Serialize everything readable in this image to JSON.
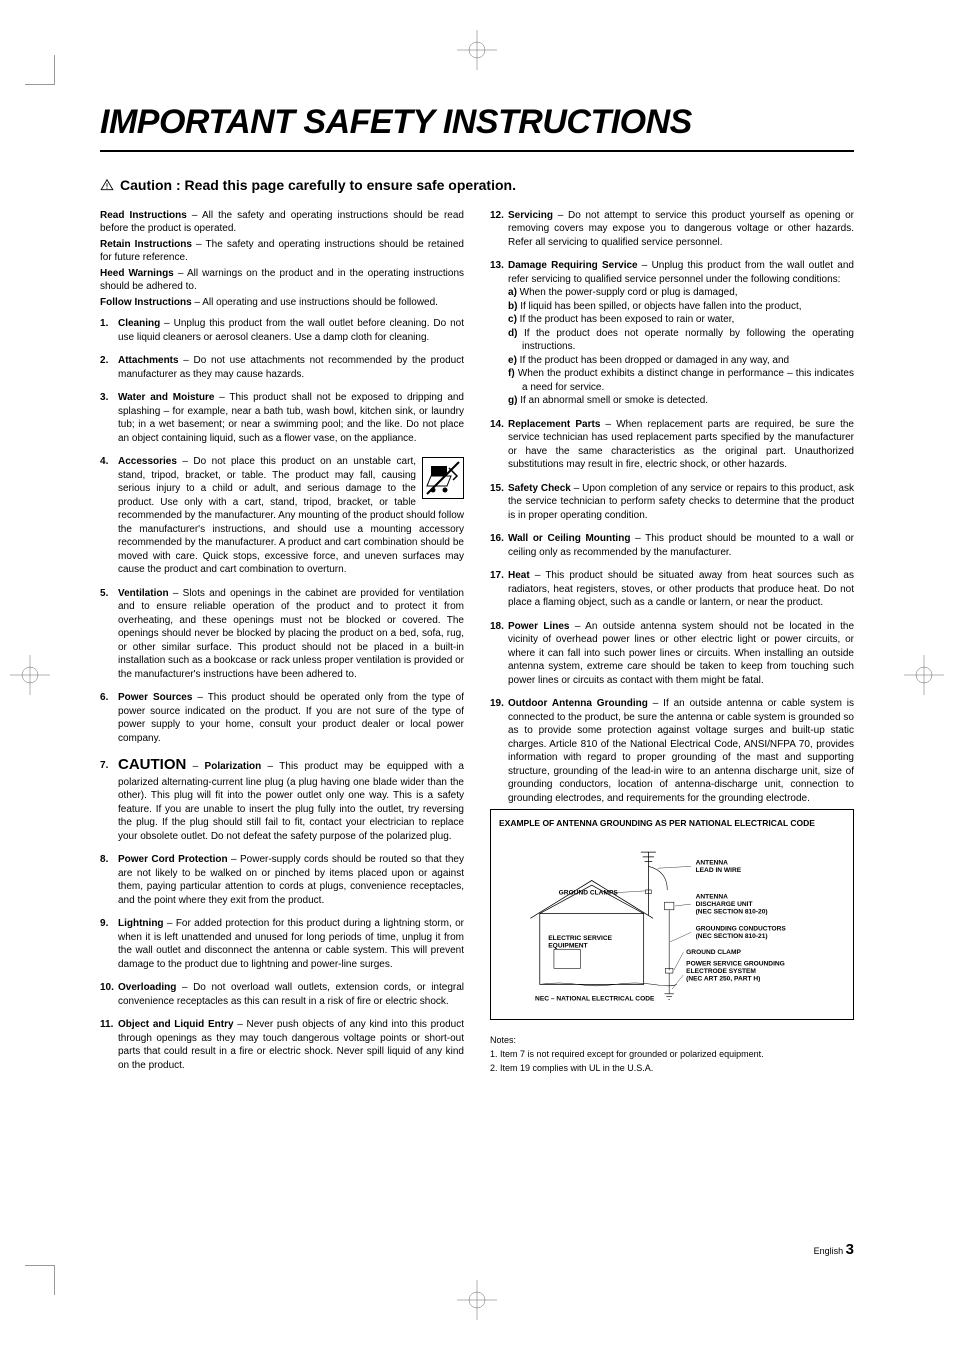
{
  "title": "IMPORTANT SAFETY INSTRUCTIONS",
  "caution_header": "Caution : Read this page carefully to ensure safe operation.",
  "intro": [
    {
      "bold": "Read Instructions",
      "text": " – All the safety and operating instructions should be read before the product is operated."
    },
    {
      "bold": "Retain Instructions",
      "text": " – The safety and operating instructions should be retained for future reference."
    },
    {
      "bold": "Heed Warnings",
      "text": " – All warnings on the product and in the operating instructions should be adhered to."
    },
    {
      "bold": "Follow Instructions",
      "text": " – All operating and use instructions should be followed."
    }
  ],
  "items": [
    {
      "title": "Cleaning",
      "text": " – Unplug this product from the wall outlet before cleaning. Do not use liquid cleaners or aerosol cleaners. Use a damp cloth for cleaning."
    },
    {
      "title": "Attachments",
      "text": " – Do not use attachments not recommended by the product manufacturer as they may cause hazards."
    },
    {
      "title": "Water and Moisture",
      "text": " – This product shall not be exposed to dripping and splashing – for example, near a bath tub, wash bowl, kitchen sink, or laundry tub; in a wet basement; or near a swimming pool; and the like. Do not place an object containing liquid, such as a flower vase, on the appliance."
    },
    {
      "title": "Accessories",
      "text": " – Do not place this product on an unstable cart, stand, tripod, bracket, or table. The product may fall, causing serious injury to a child or adult, and serious damage to the product. Use only with a cart, stand, tripod, bracket, or table recommended by the manufacturer. Any mounting of the product should follow the manufacturer's instructions, and should use a mounting accessory recommended by the manufacturer. A product and cart combination should be moved with care. Quick stops, excessive force, and uneven surfaces may cause the product and cart combination to overturn.",
      "icon": "cart"
    },
    {
      "title": "Ventilation",
      "text": " – Slots and openings in the cabinet are provided for ventilation and to ensure reliable operation of the product and to protect it from overheating, and these openings must not be blocked or covered. The openings should never be blocked by placing the product on a bed, sofa, rug, or other similar surface. This product should not be placed in a built-in installation such as a bookcase or rack unless proper ventilation is provided or the manufacturer's instructions have been adhered to."
    },
    {
      "title": "Power Sources",
      "text": " – This product should be operated only from the type of power source indicated on the product. If you are not sure of the type of power supply to your home, consult your product dealer or local power company."
    },
    {
      "title": "Polarization",
      "prefix": "CAUTION – ",
      "text": " – This product may be equipped with a polarized alternating-current line plug (a plug having one blade wider than the other). This plug will fit into the power outlet only one way. This is a safety feature. If you are unable to insert the plug fully into the outlet, try reversing the plug. If the plug should still fail to fit, contact your electrician to replace your obsolete outlet. Do not defeat the safety purpose of the polarized plug."
    },
    {
      "title": "Power Cord Protection",
      "text": " – Power-supply cords should be routed so that they are not likely to be walked on or pinched by items placed upon or against them, paying particular attention to cords at plugs, convenience receptacles, and the point where they exit from the product."
    },
    {
      "title": "Lightning",
      "text": " – For added protection for this product during a lightning storm, or when it is left unattended and unused for long periods of time, unplug it from the wall outlet and disconnect the antenna or cable system. This will prevent damage to the product due to lightning and power-line surges."
    },
    {
      "title": "Overloading",
      "text": " – Do not overload wall outlets, extension cords, or integral convenience receptacles as this can result in a risk of fire or electric shock."
    },
    {
      "title": "Object and Liquid Entry",
      "text": " – Never push objects of any kind into this product through openings as they may touch dangerous voltage points or short-out parts that could result in a fire or electric shock. Never spill liquid of any kind on the product."
    },
    {
      "title": "Servicing",
      "text": " – Do not attempt to service this product yourself as opening or removing covers may expose you to dangerous voltage or other hazards. Refer all servicing to qualified service personnel."
    },
    {
      "title": "Damage Requiring Service",
      "text": " – Unplug this product from the wall outlet and refer servicing to qualified service personnel under the following conditions:",
      "sub": [
        "When the power-supply cord or plug is damaged,",
        "If liquid has been spilled, or objects have fallen into the product,",
        "If the product has been exposed to rain or water,",
        "If the product does not operate normally by following the operating instructions.",
        "If the product has been dropped or damaged in any way, and",
        "When the product exhibits a distinct change in performance – this indicates a need for service.",
        "If an abnormal smell or smoke is detected."
      ]
    },
    {
      "title": "Replacement Parts",
      "text": " – When replacement parts are required, be sure the service technician has used replacement parts specified by the manufacturer or have the same characteristics as the original part. Unauthorized substitutions may result in fire, electric shock, or other hazards."
    },
    {
      "title": "Safety Check",
      "text": " – Upon completion of any service or repairs to this product, ask the service technician to perform safety checks to determine that the product is in proper operating condition."
    },
    {
      "title": "Wall or Ceiling Mounting",
      "text": " – This product should be mounted to a wall or ceiling only as recommended by the manufacturer."
    },
    {
      "title": "Heat",
      "text": " – This product should be situated away from heat sources such as radiators, heat registers, stoves, or other products that produce heat. Do not place a flaming object, such as a candle or lantern, or near the product."
    },
    {
      "title": "Power Lines",
      "text": " – An outside antenna system should not be located in the vicinity of overhead power lines or other electric light or power circuits, or where it can fall into such power lines or circuits. When installing an outside antenna system, extreme care should be taken to keep from touching such power lines or circuits as contact with them might be fatal."
    },
    {
      "title": "Outdoor Antenna Grounding",
      "text": " – If an outside antenna or cable system is connected to the product, be sure the antenna or cable system is grounded so as to provide some protection against voltage surges and built-up static charges. Article 810 of the National Electrical Code, ANSI/NFPA 70, provides information with regard to proper grounding of the mast and supporting structure, grounding of the lead-in wire to an antenna discharge unit, size of grounding conductors, location of antenna-discharge unit, connection to grounding electrodes, and requirements for the grounding electrode."
    }
  ],
  "diagram": {
    "title": "EXAMPLE OF ANTENNA GROUNDING AS PER NATIONAL ELECTRICAL CODE",
    "labels": {
      "antenna_lead": "ANTENNA LEAD IN WIRE",
      "ground_clamps": "GROUND CLAMPS",
      "discharge_unit": "ANTENNA DISCHARGE UNIT (NEC SECTION 810-20)",
      "electric_service": "ELECTRIC SERVICE EQUIPMENT",
      "grounding_cond": "GROUNDING CONDUCTORS (NEC SECTION 810-21)",
      "ground_clamp2": "GROUND CLAMP",
      "power_service": "POWER SERVICE GROUNDING ELECTRODE SYSTEM (NEC ART 250, PART H)",
      "nec": "NEC – NATIONAL ELECTRICAL CODE"
    }
  },
  "notes": {
    "heading": "Notes:",
    "lines": [
      "1.  Item 7 is not required except for grounded or polarized equipment.",
      "2.  Item 19 complies with UL in the U.S.A."
    ]
  },
  "footer": {
    "lang": "English",
    "page": "3"
  }
}
